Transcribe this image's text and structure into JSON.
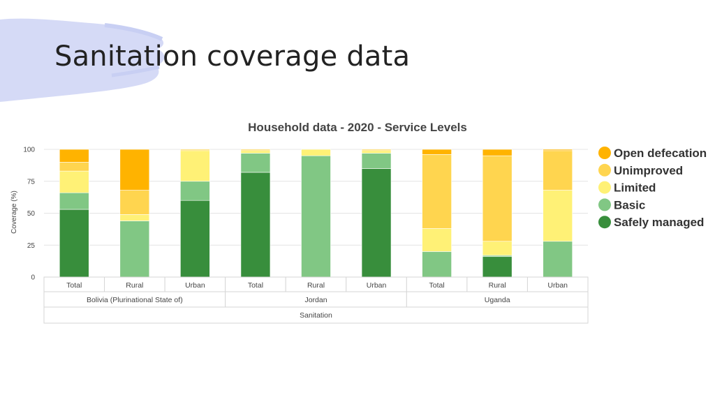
{
  "slide": {
    "title": "Sanitation coverage data"
  },
  "chart_data": {
    "type": "bar",
    "stacked": true,
    "title": "Household data - 2020 - Service Levels",
    "ylabel": "Coverage (%)",
    "xlabel": "",
    "ylim": [
      0,
      100
    ],
    "yticks": [
      0,
      25,
      50,
      75,
      100
    ],
    "grid": true,
    "legend_position": "right",
    "categories": [
      "Total",
      "Rural",
      "Urban",
      "Total",
      "Rural",
      "Urban",
      "Total",
      "Rural",
      "Urban"
    ],
    "groups": [
      {
        "label": "Bolivia (Plurinational State of)",
        "count": 3
      },
      {
        "label": "Jordan",
        "count": 3
      },
      {
        "label": "Uganda",
        "count": 3
      }
    ],
    "super_group": "Sanitation",
    "series": [
      {
        "name": "Safely managed",
        "color": "#388e3c",
        "values": [
          53,
          0,
          60,
          82,
          0,
          85,
          0,
          16,
          0
        ]
      },
      {
        "name": "Basic",
        "color": "#81c784",
        "values": [
          13,
          44,
          15,
          15,
          95,
          12,
          20,
          1,
          28
        ]
      },
      {
        "name": "Limited",
        "color": "#fff176",
        "values": [
          17,
          5,
          24,
          2,
          5,
          2,
          18,
          11,
          40
        ]
      },
      {
        "name": "Unimproved",
        "color": "#ffd54f",
        "values": [
          7,
          19,
          1,
          1,
          0,
          1,
          58,
          67,
          31
        ]
      },
      {
        "name": "Open defecation",
        "color": "#ffb300",
        "values": [
          10,
          32,
          0,
          0,
          0,
          0,
          4,
          5,
          1
        ]
      }
    ]
  }
}
